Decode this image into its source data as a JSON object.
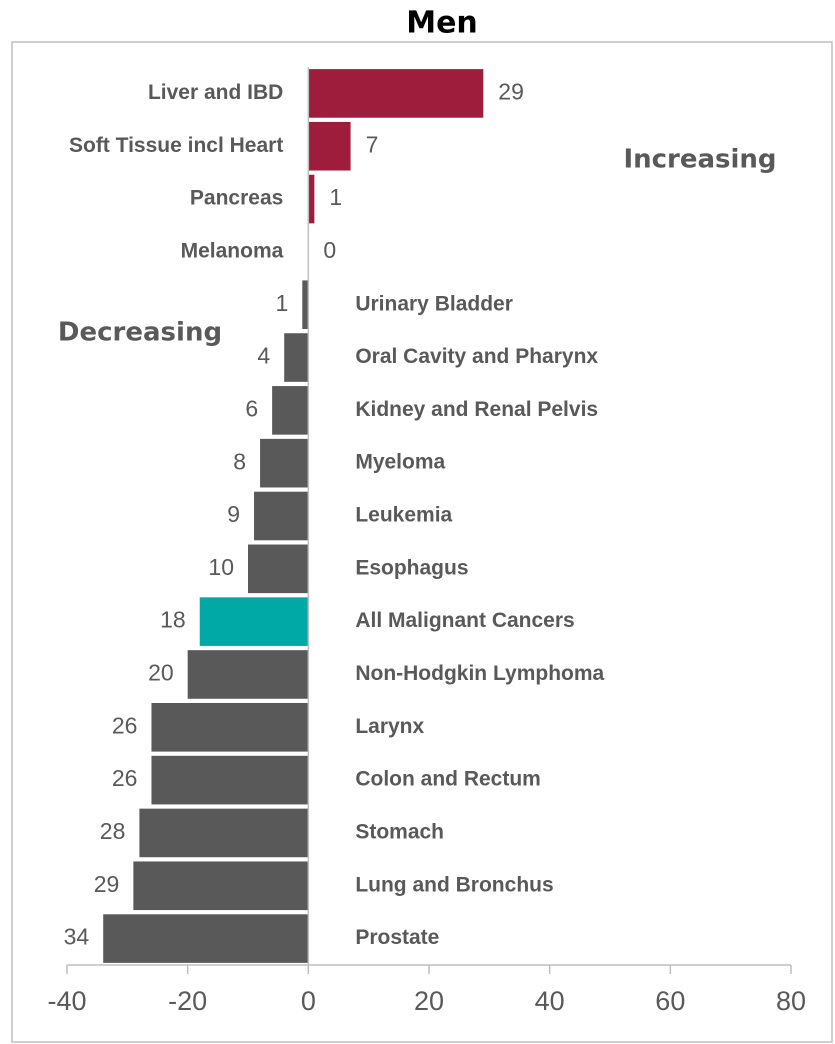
{
  "chart_data": {
    "type": "bar",
    "orientation": "horizontal",
    "title": "Men",
    "categories": [
      "Liver and IBD",
      "Soft Tissue incl Heart",
      "Pancreas",
      "Melanoma",
      "Urinary Bladder",
      "Oral Cavity and Pharynx",
      "Kidney and Renal Pelvis",
      "Myeloma",
      "Leukemia",
      "Esophagus",
      "All Malignant Cancers",
      "Non-Hodgkin Lymphoma",
      "Larynx",
      "Colon and Rectum",
      "Stomach",
      "Lung and Bronchus",
      "Prostate"
    ],
    "values": [
      29,
      7,
      1,
      0,
      -1,
      -4,
      -6,
      -8,
      -9,
      -10,
      -18,
      -20,
      -26,
      -26,
      -28,
      -29,
      -34
    ],
    "value_labels": [
      "29",
      "7",
      "1",
      "0",
      "1",
      "4",
      "6",
      "8",
      "9",
      "10",
      "18",
      "20",
      "26",
      "26",
      "28",
      "29",
      "34"
    ],
    "colors": [
      "#9e1c3c",
      "#9e1c3c",
      "#9e1c3c",
      "#9e1c3c",
      "#595959",
      "#595959",
      "#595959",
      "#595959",
      "#595959",
      "#595959",
      "#00a9a5",
      "#595959",
      "#595959",
      "#595959",
      "#595959",
      "#595959",
      "#595959"
    ],
    "xlim": [
      -40,
      80
    ],
    "xticks": [
      -40,
      -20,
      0,
      20,
      40,
      60,
      80
    ],
    "annotations": [
      "Increasing",
      "Decreasing"
    ]
  }
}
